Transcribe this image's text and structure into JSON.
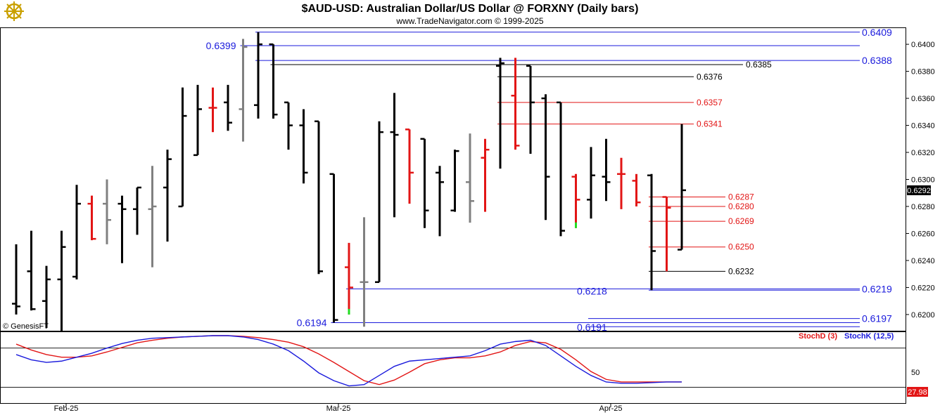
{
  "header": {
    "title": "$AUD-USD:  Australian Dollar/US Dollar @ FORXNY  (Daily bars)",
    "subtitle": "www.TradeNavigator.com © 1999-2025"
  },
  "copyright": "© GenesisFT",
  "logo_icon": "ship-wheel-icon",
  "colors": {
    "up_bar": "#000000",
    "down_bar": "#e21515",
    "neutral_bar": "#808080",
    "green_tick": "#22dd22",
    "level_blue": "#1a1adc",
    "level_red": "#e21515",
    "level_black": "#000000",
    "stoch_d": "#e21515",
    "stoch_k": "#1a1adc"
  },
  "chart_data": [
    {
      "type": "ohlc",
      "price_axis": {
        "ylim": [
          0.6188,
          0.6412
        ],
        "ticks": [
          "0.6400",
          "0.6380",
          "0.6360",
          "0.6340",
          "0.6320",
          "0.6300",
          "0.6280",
          "0.6260",
          "0.6240",
          "0.6220",
          "0.6200"
        ],
        "last_price_label": "0.6292"
      },
      "x_labels": [
        {
          "label": "Feb-25",
          "index": 2
        },
        {
          "label": "Mar-25",
          "index": 20
        },
        {
          "label": "Apr-25",
          "index": 38
        }
      ],
      "bars": [
        {
          "o": 0.6208,
          "h": 0.6252,
          "l": 0.62,
          "c": 0.6206,
          "color": "black"
        },
        {
          "o": 0.6232,
          "h": 0.6262,
          "l": 0.6203,
          "c": 0.6204,
          "color": "black"
        },
        {
          "o": 0.621,
          "h": 0.6236,
          "l": 0.619,
          "c": 0.6226,
          "color": "black"
        },
        {
          "o": 0.6226,
          "h": 0.6262,
          "l": 0.6188,
          "c": 0.625,
          "color": "black"
        },
        {
          "o": 0.6228,
          "h": 0.6296,
          "l": 0.6226,
          "c": 0.6282,
          "color": "black"
        },
        {
          "o": 0.6282,
          "h": 0.6288,
          "l": 0.6255,
          "c": 0.6256,
          "color": "red"
        },
        {
          "o": 0.6282,
          "h": 0.63,
          "l": 0.6252,
          "c": 0.627,
          "color": "gray"
        },
        {
          "o": 0.6282,
          "h": 0.6288,
          "l": 0.6238,
          "c": 0.6278,
          "color": "black"
        },
        {
          "o": 0.6278,
          "h": 0.6294,
          "l": 0.6259,
          "c": 0.6294,
          "color": "black"
        },
        {
          "o": 0.6278,
          "h": 0.631,
          "l": 0.6235,
          "c": 0.628,
          "color": "gray"
        },
        {
          "o": 0.6294,
          "h": 0.6322,
          "l": 0.6254,
          "c": 0.6315,
          "color": "black"
        },
        {
          "o": 0.628,
          "h": 0.6368,
          "l": 0.628,
          "c": 0.6347,
          "color": "black"
        },
        {
          "o": 0.6318,
          "h": 0.637,
          "l": 0.6318,
          "c": 0.6352,
          "color": "black"
        },
        {
          "o": 0.6353,
          "h": 0.6368,
          "l": 0.6335,
          "c": 0.6353,
          "color": "red"
        },
        {
          "o": 0.6357,
          "h": 0.637,
          "l": 0.6336,
          "c": 0.6342,
          "color": "black"
        },
        {
          "o": 0.6352,
          "h": 0.6404,
          "l": 0.6328,
          "c": 0.6398,
          "color": "gray"
        },
        {
          "o": 0.6355,
          "h": 0.6409,
          "l": 0.6345,
          "c": 0.64,
          "color": "black"
        },
        {
          "o": 0.64,
          "h": 0.64,
          "l": 0.6345,
          "c": 0.6348,
          "color": "black"
        },
        {
          "o": 0.6357,
          "h": 0.6357,
          "l": 0.6322,
          "c": 0.634,
          "color": "black"
        },
        {
          "o": 0.634,
          "h": 0.6352,
          "l": 0.6297,
          "c": 0.6305,
          "color": "black"
        },
        {
          "o": 0.6343,
          "h": 0.6343,
          "l": 0.623,
          "c": 0.6232,
          "color": "black"
        },
        {
          "o": 0.6304,
          "h": 0.6304,
          "l": 0.6194,
          "c": 0.6196,
          "color": "black"
        },
        {
          "o": 0.6235,
          "h": 0.6253,
          "l": 0.62,
          "c": 0.622,
          "color": "red",
          "low_tick": "green"
        },
        {
          "o": 0.6224,
          "h": 0.6272,
          "l": 0.6191,
          "c": 0.6224,
          "color": "gray"
        },
        {
          "o": 0.6224,
          "h": 0.6343,
          "l": 0.6224,
          "c": 0.6335,
          "color": "black"
        },
        {
          "o": 0.6335,
          "h": 0.6364,
          "l": 0.6272,
          "c": 0.6333,
          "color": "black"
        },
        {
          "o": 0.6337,
          "h": 0.6337,
          "l": 0.6282,
          "c": 0.6305,
          "color": "red"
        },
        {
          "o": 0.633,
          "h": 0.633,
          "l": 0.6264,
          "c": 0.6277,
          "color": "black"
        },
        {
          "o": 0.6305,
          "h": 0.631,
          "l": 0.6258,
          "c": 0.6298,
          "color": "black"
        },
        {
          "o": 0.6277,
          "h": 0.6322,
          "l": 0.6276,
          "c": 0.6321,
          "color": "black"
        },
        {
          "o": 0.6298,
          "h": 0.6334,
          "l": 0.6268,
          "c": 0.6284,
          "color": "gray"
        },
        {
          "o": 0.6316,
          "h": 0.633,
          "l": 0.6276,
          "c": 0.6322,
          "color": "red"
        },
        {
          "o": 0.6384,
          "h": 0.639,
          "l": 0.6308,
          "c": 0.6386,
          "color": "black"
        },
        {
          "o": 0.6362,
          "h": 0.639,
          "l": 0.6322,
          "c": 0.6325,
          "color": "red"
        },
        {
          "o": 0.6384,
          "h": 0.6384,
          "l": 0.6319,
          "c": 0.6357,
          "color": "black"
        },
        {
          "o": 0.636,
          "h": 0.6363,
          "l": 0.627,
          "c": 0.6302,
          "color": "black"
        },
        {
          "o": 0.6357,
          "h": 0.6357,
          "l": 0.6258,
          "c": 0.6262,
          "color": "black"
        },
        {
          "o": 0.6302,
          "h": 0.6304,
          "l": 0.6264,
          "c": 0.6285,
          "color": "red",
          "low_tick": "green"
        },
        {
          "o": 0.6285,
          "h": 0.6324,
          "l": 0.6271,
          "c": 0.6303,
          "color": "black"
        },
        {
          "o": 0.6302,
          "h": 0.633,
          "l": 0.6284,
          "c": 0.6298,
          "color": "black"
        },
        {
          "o": 0.6304,
          "h": 0.6316,
          "l": 0.6278,
          "c": 0.6304,
          "color": "red"
        },
        {
          "o": 0.6299,
          "h": 0.6304,
          "l": 0.628,
          "c": 0.6283,
          "color": "red"
        },
        {
          "o": 0.6303,
          "h": 0.6304,
          "l": 0.6218,
          "c": 0.6247,
          "color": "black"
        },
        {
          "o": 0.6287,
          "h": 0.6287,
          "l": 0.6232,
          "c": 0.6279,
          "color": "red"
        },
        {
          "o": 0.6248,
          "h": 0.6341,
          "l": 0.6248,
          "c": 0.6292,
          "color": "black"
        }
      ],
      "levels": [
        {
          "price": 0.6409,
          "label": "0.6409",
          "color": "blue",
          "from": 16,
          "label_pos": "right"
        },
        {
          "price": 0.6399,
          "label": "0.6399",
          "color": "blue",
          "from": 15,
          "label_pos": "left"
        },
        {
          "price": 0.6388,
          "label": "0.6388",
          "color": "blue",
          "from": 16,
          "label_pos": "right"
        },
        {
          "price": 0.6385,
          "label": "0.6385",
          "color": "black",
          "from": 17,
          "label_pos": "mid-1060"
        },
        {
          "price": 0.6376,
          "label": "0.6376",
          "color": "black",
          "from": 32,
          "label_pos": "mid-990"
        },
        {
          "price": 0.6357,
          "label": "0.6357",
          "color": "red",
          "from": 32,
          "label_pos": "mid-990"
        },
        {
          "price": 0.6341,
          "label": "0.6341",
          "color": "red",
          "from": 32,
          "label_pos": "mid-990"
        },
        {
          "price": 0.6287,
          "label": "0.6287",
          "color": "red",
          "from": 42,
          "label_pos": "mid-1035"
        },
        {
          "price": 0.628,
          "label": "0.6280",
          "color": "red",
          "from": 42,
          "label_pos": "mid-1035"
        },
        {
          "price": 0.6269,
          "label": "0.6269",
          "color": "red",
          "from": 42,
          "label_pos": "mid-1035"
        },
        {
          "price": 0.625,
          "label": "0.6250",
          "color": "red",
          "from": 42,
          "label_pos": "mid-1035"
        },
        {
          "price": 0.6232,
          "label": "0.6232",
          "color": "black",
          "from": 42,
          "label_pos": "mid-1035"
        },
        {
          "price": 0.6219,
          "label": "0.6219",
          "color": "blue",
          "from": 22,
          "label_pos": "right"
        },
        {
          "price": 0.6218,
          "label": "0.6218",
          "color": "blue",
          "from": 42,
          "label_pos": "mid-820"
        },
        {
          "price": 0.6197,
          "label": "0.6197",
          "color": "blue",
          "from": 38,
          "label_pos": "right"
        },
        {
          "price": 0.6194,
          "label": "0.6194",
          "color": "blue",
          "from": 21,
          "label_pos": "left"
        },
        {
          "price": 0.6191,
          "label": "0.6191",
          "color": "blue",
          "from": 38,
          "label_pos": "mid-820"
        }
      ]
    },
    {
      "type": "line",
      "title": "",
      "ylim": [
        0,
        100
      ],
      "tick_label": "50",
      "last_value_label": "27.98",
      "reference_lines": [
        80,
        20
      ],
      "series": [
        {
          "name": "StochD (3)",
          "color": "red",
          "values": [
            86,
            77,
            70,
            66,
            66,
            68,
            74,
            81,
            88,
            92,
            95,
            97,
            98,
            99,
            99,
            98,
            96,
            93,
            89,
            82,
            71,
            58,
            44,
            30,
            24,
            31,
            43,
            56,
            62,
            65,
            65,
            68,
            74,
            84,
            90,
            88,
            78,
            62,
            44,
            32,
            28,
            28,
            28,
            28,
            28
          ]
        },
        {
          "name": "StochK (12,5)",
          "color": "blue",
          "values": [
            70,
            62,
            58,
            60,
            66,
            72,
            80,
            87,
            92,
            95,
            96,
            97,
            98,
            99,
            99,
            97,
            93,
            86,
            76,
            60,
            42,
            30,
            22,
            24,
            38,
            52,
            60,
            62,
            64,
            66,
            68,
            76,
            86,
            90,
            92,
            84,
            68,
            52,
            38,
            28,
            26,
            26,
            27,
            28,
            28
          ]
        }
      ]
    }
  ]
}
